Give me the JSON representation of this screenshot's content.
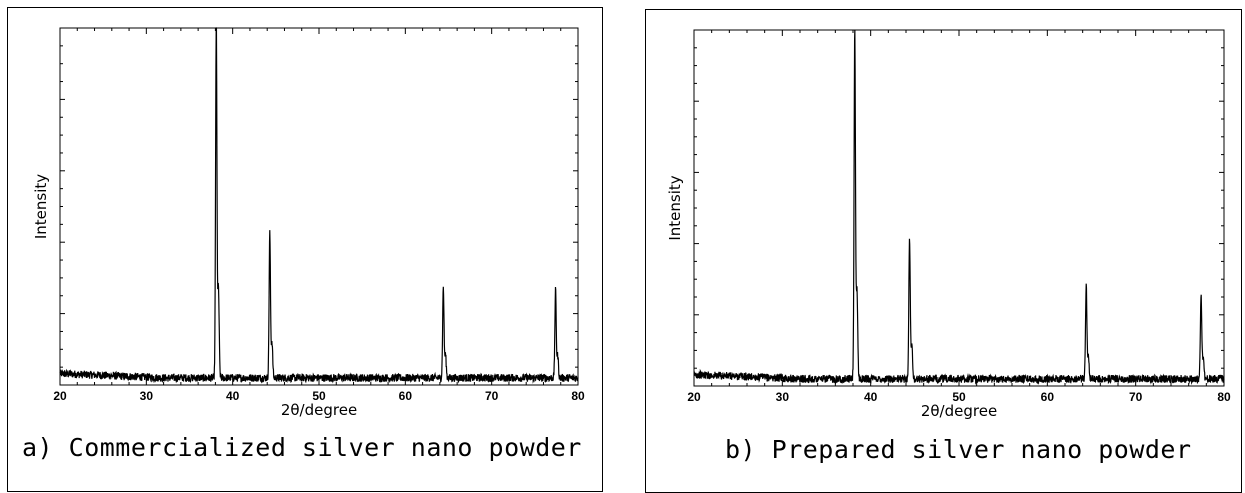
{
  "chart_data": [
    {
      "type": "line",
      "caption": "a) Commercialized silver nano powder",
      "xlabel": "2θ/degree",
      "ylabel": "Intensity",
      "xlim": [
        20,
        80
      ],
      "ylim": [
        0,
        1
      ],
      "xticks": [
        20,
        30,
        40,
        50,
        60,
        70,
        80
      ],
      "y_tick_labels": false,
      "grid": false,
      "series": [
        {
          "peaks": [
            {
              "x": 38.1,
              "y": 1.0
            },
            {
              "x": 44.3,
              "y": 0.405
            },
            {
              "x": 64.4,
              "y": 0.255
            },
            {
              "x": 77.4,
              "y": 0.245
            }
          ],
          "baseline": 0.02
        }
      ]
    },
    {
      "type": "line",
      "caption": "b) Prepared silver nano powder",
      "xlabel": "2θ/degree",
      "ylabel": "Intensity",
      "xlim": [
        20,
        80
      ],
      "ylim": [
        0,
        1
      ],
      "xticks": [
        20,
        30,
        40,
        50,
        60,
        70,
        80
      ],
      "y_tick_labels": false,
      "grid": false,
      "series": [
        {
          "peaks": [
            {
              "x": 38.2,
              "y": 0.985
            },
            {
              "x": 44.4,
              "y": 0.395
            },
            {
              "x": 64.4,
              "y": 0.265
            },
            {
              "x": 77.4,
              "y": 0.24
            }
          ],
          "baseline": 0.02
        }
      ]
    }
  ]
}
